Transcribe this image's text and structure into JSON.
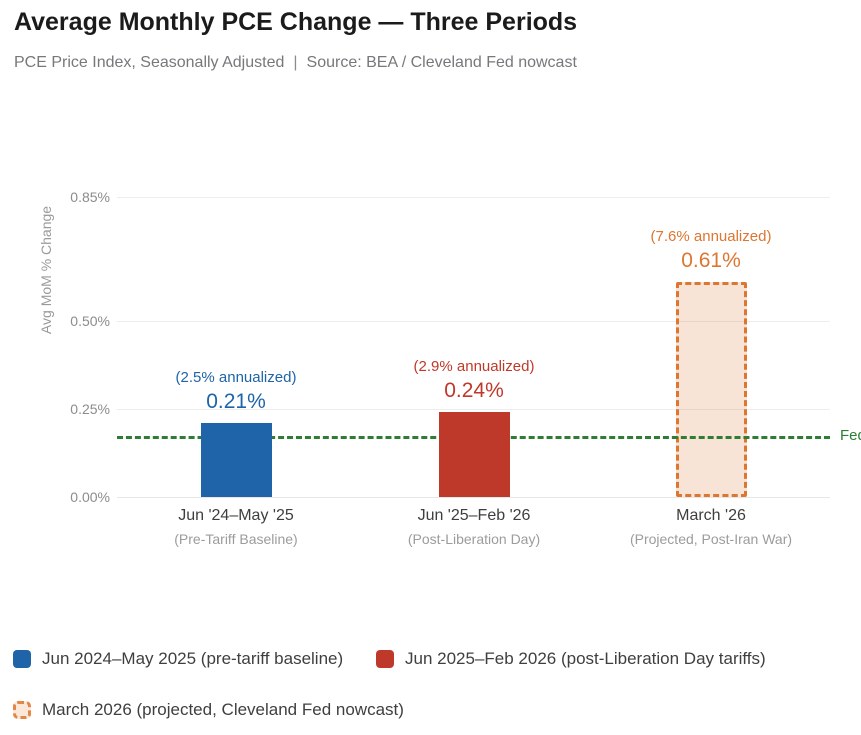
{
  "header": {
    "title": "Average Monthly PCE Change — Three Periods",
    "subtitle_left": "PCE Price Index, Seasonally Adjusted",
    "subtitle_sep": "|",
    "subtitle_right": "Source: BEA / Cleveland Fed nowcast"
  },
  "palette": {
    "blue": "#1f64a8",
    "red": "#bf392a",
    "orange": "#dd7630",
    "orange_fill": "rgba(222,120,48,0.20)",
    "green": "#2e7d32"
  },
  "chart_data": {
    "type": "bar",
    "title": "Average Monthly PCE Change — Three Periods",
    "xlabel": "",
    "ylabel": "Avg MoM % Change",
    "ylim": [
      0,
      0.85
    ],
    "grid": true,
    "yticks": [
      0.85,
      0.5,
      0.25,
      0.0
    ],
    "ytick_labels": [
      "0.85%",
      "0.50%",
      "0.25%",
      "0.00%"
    ],
    "categories": [
      "Jun '24–May '25",
      "Jun '25–Feb '26",
      "March '26"
    ],
    "category_sublabels": [
      "(Pre-Tariff Baseline)",
      "(Post-Liberation Day)",
      "(Projected, Post-Iran War)"
    ],
    "values": [
      0.21,
      0.24,
      0.61
    ],
    "value_labels": [
      "0.21%",
      "0.24%",
      "0.61%"
    ],
    "annotations": [
      "(2.5% annualized)",
      "(2.9% annualized)",
      "(7.6% annualized)"
    ],
    "bar_colors": [
      "#1f64a8",
      "#bf392a",
      "#dd7630"
    ],
    "projected": [
      false,
      false,
      true
    ],
    "reference_line": {
      "value": 0.17,
      "label": "Fed",
      "color": "#2e7d32",
      "style": "dashed"
    },
    "legend_position": "bottom"
  },
  "legend": {
    "items": [
      {
        "label": "Jun 2024–May 2025 (pre-tariff baseline)",
        "color": "#1f64a8",
        "style": "solid"
      },
      {
        "label": "Jun 2025–Feb 2026 (post-Liberation Day tariffs)",
        "color": "#bf392a",
        "style": "solid"
      },
      {
        "label": "March 2026 (projected, Cleveland Fed nowcast)",
        "color": "#dd7630",
        "style": "dashed"
      }
    ]
  }
}
